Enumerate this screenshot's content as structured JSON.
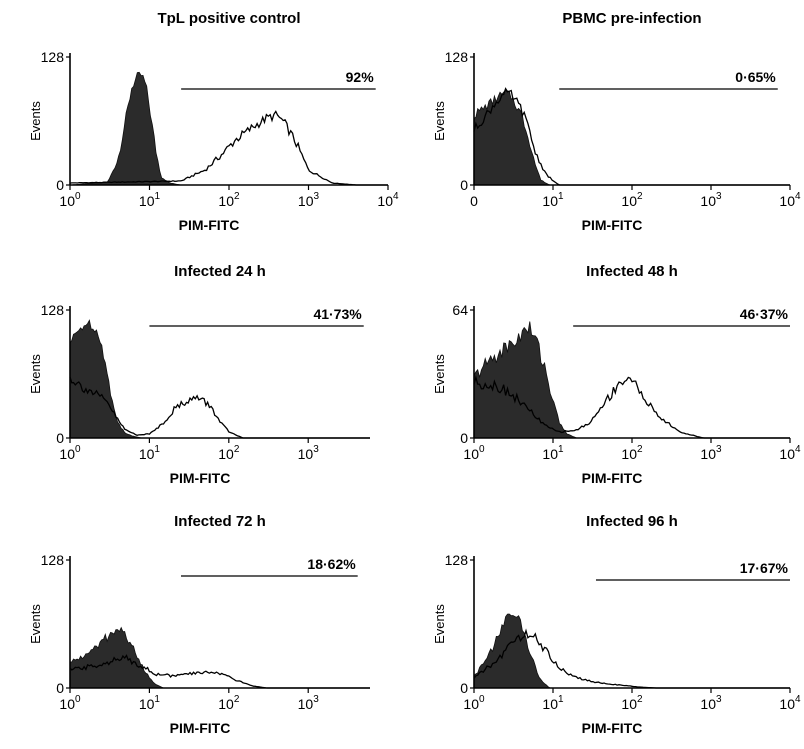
{
  "figure": {
    "panel_count": 6
  },
  "chart_data": [
    {
      "type": "area",
      "title": "TpL positive control",
      "xlabel": "PIM-FITC",
      "ylabel": "Events",
      "x_scale": "log",
      "xlim": [
        1,
        10000
      ],
      "ylim": [
        0,
        128
      ],
      "y_ticks": [
        "0",
        "128"
      ],
      "x_ticks": [
        {
          "base": "10",
          "exp": "0"
        },
        {
          "base": "10",
          "exp": "1"
        },
        {
          "base": "10",
          "exp": "2"
        },
        {
          "base": "10",
          "exp": "3"
        },
        {
          "base": "10",
          "exp": "4"
        }
      ],
      "gate": {
        "label": "92%",
        "x_start": 25,
        "x_end": 7000,
        "y": 96
      },
      "series": [
        {
          "style": "filled-dark",
          "x": [
            1,
            3,
            4,
            5,
            6,
            7,
            8,
            9,
            10,
            12,
            14,
            18,
            25
          ],
          "y": [
            0,
            3,
            25,
            65,
            98,
            108,
            110,
            100,
            78,
            35,
            8,
            2,
            0
          ]
        },
        {
          "style": "outline",
          "x": [
            1,
            25,
            50,
            80,
            120,
            200,
            300,
            400,
            500,
            700,
            1000,
            2000,
            4000
          ],
          "y": [
            2,
            4,
            15,
            30,
            45,
            58,
            67,
            70,
            62,
            42,
            15,
            2,
            0
          ]
        }
      ]
    },
    {
      "type": "area",
      "title": "PBMC pre-infection",
      "xlabel": "PIM-FITC",
      "ylabel": "Events",
      "x_scale": "log",
      "xlim": [
        1,
        10000
      ],
      "ylim": [
        0,
        128
      ],
      "y_ticks": [
        "0",
        "128"
      ],
      "x_ticks": [
        {
          "base": "0",
          "exp": ""
        },
        {
          "base": "10",
          "exp": "1"
        },
        {
          "base": "10",
          "exp": "2"
        },
        {
          "base": "10",
          "exp": "3"
        },
        {
          "base": "10",
          "exp": "4"
        }
      ],
      "gate": {
        "label": "0·65%",
        "x_start": 12,
        "x_end": 7000,
        "y": 96
      },
      "series": [
        {
          "style": "filled-dark",
          "x": [
            1,
            1.5,
            2,
            2.5,
            3,
            4,
            5,
            6,
            7,
            9
          ],
          "y": [
            70,
            80,
            88,
            92,
            88,
            70,
            45,
            20,
            5,
            0
          ]
        },
        {
          "style": "outline",
          "x": [
            1,
            1.5,
            2,
            2.5,
            3,
            4,
            5,
            6,
            8,
            10,
            12
          ],
          "y": [
            55,
            72,
            85,
            92,
            90,
            76,
            55,
            32,
            12,
            4,
            0
          ]
        }
      ]
    },
    {
      "type": "area",
      "title": "Infected 24 h",
      "xlabel": "PIM-FITC",
      "ylabel": "Events",
      "x_scale": "log",
      "xlim": [
        1,
        6000
      ],
      "ylim": [
        0,
        128
      ],
      "y_ticks": [
        "0",
        "128"
      ],
      "x_ticks": [
        {
          "base": "10",
          "exp": "0"
        },
        {
          "base": "10",
          "exp": "1"
        },
        {
          "base": "10",
          "exp": "2"
        },
        {
          "base": "10",
          "exp": "3"
        }
      ],
      "gate": {
        "label": "41·73%",
        "x_start": 10,
        "x_end": 5000,
        "y": 112
      },
      "series": [
        {
          "style": "filled-dark",
          "x": [
            1,
            1.3,
            1.6,
            2,
            2.5,
            3,
            3.5,
            4,
            5,
            6,
            8
          ],
          "y": [
            95,
            108,
            115,
            112,
            95,
            60,
            32,
            15,
            5,
            2,
            0
          ]
        },
        {
          "style": "outline",
          "x": [
            1,
            1.5,
            2,
            3,
            4,
            5,
            7,
            10,
            15,
            20,
            30,
            40,
            55,
            70,
            100,
            150
          ],
          "y": [
            60,
            50,
            45,
            35,
            18,
            8,
            3,
            4,
            15,
            28,
            38,
            40,
            34,
            22,
            6,
            0
          ]
        }
      ]
    },
    {
      "type": "area",
      "title": "Infected 48 h",
      "xlabel": "PIM-FITC",
      "ylabel": "Events",
      "x_scale": "log",
      "xlim": [
        1,
        10000
      ],
      "ylim": [
        0,
        64
      ],
      "y_ticks": [
        "0",
        "64"
      ],
      "x_ticks": [
        {
          "base": "10",
          "exp": "0"
        },
        {
          "base": "10",
          "exp": "1"
        },
        {
          "base": "10",
          "exp": "2"
        },
        {
          "base": "10",
          "exp": "3"
        },
        {
          "base": "10",
          "exp": "4"
        }
      ],
      "gate": {
        "label": "46·37%",
        "x_start": 18,
        "x_end": 10000,
        "y": 56
      },
      "series": [
        {
          "style": "filled-dark",
          "x": [
            1,
            1.5,
            2,
            3,
            4,
            5,
            6,
            8,
            10,
            12,
            15,
            20
          ],
          "y": [
            30,
            38,
            42,
            47,
            52,
            55,
            50,
            35,
            18,
            8,
            2,
            0
          ]
        },
        {
          "style": "outline",
          "x": [
            1,
            2,
            3,
            5,
            8,
            12,
            20,
            30,
            50,
            70,
            90,
            120,
            200,
            400,
            800
          ],
          "y": [
            28,
            26,
            22,
            14,
            6,
            3,
            4,
            8,
            20,
            28,
            30,
            25,
            12,
            3,
            0
          ]
        }
      ]
    },
    {
      "type": "area",
      "title": "Infected 72 h",
      "xlabel": "PIM-FITC",
      "ylabel": "Events",
      "x_scale": "log",
      "xlim": [
        1,
        6000
      ],
      "ylim": [
        0,
        128
      ],
      "y_ticks": [
        "0",
        "128"
      ],
      "x_ticks": [
        {
          "base": "10",
          "exp": "0"
        },
        {
          "base": "10",
          "exp": "1"
        },
        {
          "base": "10",
          "exp": "2"
        },
        {
          "base": "10",
          "exp": "3"
        }
      ],
      "gate": {
        "label": "18·62%",
        "x_start": 25,
        "x_end": 4200,
        "y": 112
      },
      "series": [
        {
          "style": "filled-dark",
          "x": [
            1,
            2,
            3,
            4,
            5,
            6,
            8,
            10,
            12,
            15
          ],
          "y": [
            25,
            38,
            52,
            58,
            55,
            42,
            22,
            10,
            4,
            0
          ]
        },
        {
          "style": "outline",
          "x": [
            1,
            2,
            3,
            5,
            8,
            12,
            20,
            40,
            60,
            90,
            120,
            200,
            300
          ],
          "y": [
            18,
            22,
            26,
            30,
            22,
            14,
            12,
            15,
            16,
            14,
            8,
            2,
            0
          ]
        }
      ]
    },
    {
      "type": "area",
      "title": "Infected 96 h",
      "xlabel": "PIM-FITC",
      "ylabel": "Events",
      "x_scale": "log",
      "xlim": [
        1,
        10000
      ],
      "ylim": [
        0,
        128
      ],
      "y_ticks": [
        "0",
        "128"
      ],
      "x_ticks": [
        {
          "base": "10",
          "exp": "0"
        },
        {
          "base": "10",
          "exp": "1"
        },
        {
          "base": "10",
          "exp": "2"
        },
        {
          "base": "10",
          "exp": "3"
        },
        {
          "base": "10",
          "exp": "4"
        }
      ],
      "gate": {
        "label": "17·67%",
        "x_start": 35,
        "x_end": 10000,
        "y": 108
      },
      "series": [
        {
          "style": "filled-dark",
          "x": [
            1,
            1.5,
            2,
            2.5,
            3,
            3.5,
            4,
            5,
            6,
            7,
            9
          ],
          "y": [
            12,
            30,
            52,
            68,
            75,
            72,
            62,
            40,
            20,
            8,
            0
          ]
        },
        {
          "style": "outline",
          "x": [
            1,
            2,
            3,
            4,
            5,
            6,
            8,
            10,
            15,
            25,
            40,
            70,
            120,
            200
          ],
          "y": [
            10,
            28,
            45,
            52,
            55,
            50,
            38,
            26,
            15,
            8,
            5,
            3,
            1,
            0
          ]
        }
      ]
    }
  ]
}
